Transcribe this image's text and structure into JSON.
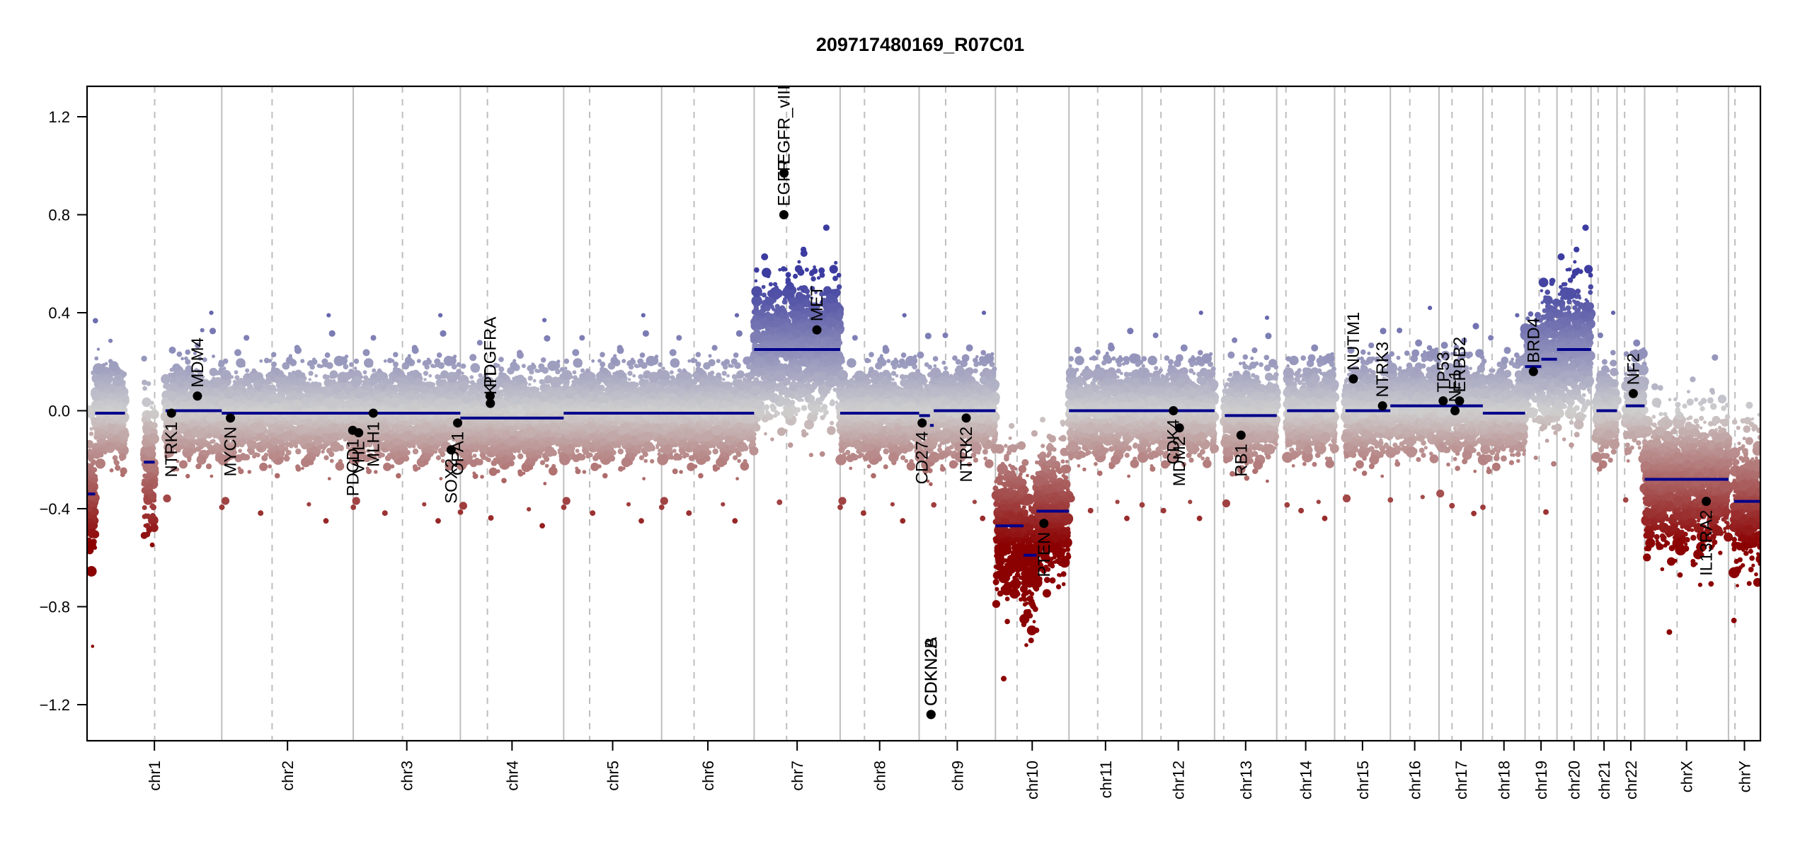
{
  "chart_data": {
    "type": "scatter",
    "title": "209717480169_R07C01",
    "xlabel": "",
    "ylabel": "",
    "ylim": [
      -1.33,
      1.33
    ],
    "yticks": [
      1.2,
      0.8,
      0.4,
      0.0,
      -0.4,
      -0.8,
      -1.2
    ],
    "ytick_labels": [
      "1.2",
      "0.8",
      "0.4",
      "0.0",
      "−0.4",
      "−0.8",
      "−1.2"
    ],
    "grid": false,
    "legend": "none",
    "colors": {
      "gain": "#3c3ca0",
      "neutral": "#cfcfcf",
      "loss": "#8b0000",
      "segment": "#00008b",
      "gene": "#000000",
      "chrom_border": "#bebebe",
      "centromere": "#bebebe"
    },
    "chromosomes": [
      {
        "name": "chr1",
        "length_mb": 249,
        "centromere_mb": 125
      },
      {
        "name": "chr2",
        "length_mb": 243,
        "centromere_mb": 93
      },
      {
        "name": "chr3",
        "length_mb": 198,
        "centromere_mb": 91
      },
      {
        "name": "chr4",
        "length_mb": 191,
        "centromere_mb": 50
      },
      {
        "name": "chr5",
        "length_mb": 181,
        "centromere_mb": 48
      },
      {
        "name": "chr6",
        "length_mb": 171,
        "centromere_mb": 60
      },
      {
        "name": "chr7",
        "length_mb": 159,
        "centromere_mb": 60
      },
      {
        "name": "chr8",
        "length_mb": 146,
        "centromere_mb": 45
      },
      {
        "name": "chr9",
        "length_mb": 141,
        "centromere_mb": 49
      },
      {
        "name": "chr10",
        "length_mb": 136,
        "centromere_mb": 40
      },
      {
        "name": "chr11",
        "length_mb": 135,
        "centromere_mb": 53
      },
      {
        "name": "chr12",
        "length_mb": 134,
        "centromere_mb": 35
      },
      {
        "name": "chr13",
        "length_mb": 115,
        "centromere_mb": 17
      },
      {
        "name": "chr14",
        "length_mb": 107,
        "centromere_mb": 17
      },
      {
        "name": "chr15",
        "length_mb": 103,
        "centromere_mb": 19
      },
      {
        "name": "chr16",
        "length_mb": 90,
        "centromere_mb": 36
      },
      {
        "name": "chr17",
        "length_mb": 81,
        "centromere_mb": 24
      },
      {
        "name": "chr18",
        "length_mb": 78,
        "centromere_mb": 17
      },
      {
        "name": "chr19",
        "length_mb": 59,
        "centromere_mb": 26
      },
      {
        "name": "chr20",
        "length_mb": 63,
        "centromere_mb": 27
      },
      {
        "name": "chr21",
        "length_mb": 48,
        "centromere_mb": 13
      },
      {
        "name": "chr22",
        "length_mb": 51,
        "centromere_mb": 14
      },
      {
        "name": "chrX",
        "length_mb": 155,
        "centromere_mb": 60
      },
      {
        "name": "chrY",
        "length_mb": 59,
        "centromere_mb": 12
      }
    ],
    "segments": [
      {
        "chr": "chr1",
        "start": 0,
        "end": 15,
        "value": -0.34
      },
      {
        "chr": "chr1",
        "start": 15,
        "end": 70,
        "value": -0.01
      },
      {
        "chr": "chr1",
        "start": 105,
        "end": 125,
        "value": -0.21
      },
      {
        "chr": "chr1",
        "start": 145,
        "end": 249,
        "value": 0.0
      },
      {
        "chr": "chr2",
        "start": 0,
        "end": 243,
        "value": -0.01
      },
      {
        "chr": "chr3",
        "start": 0,
        "end": 198,
        "value": -0.01
      },
      {
        "chr": "chr4",
        "start": 0,
        "end": 191,
        "value": -0.03
      },
      {
        "chr": "chr5",
        "start": 0,
        "end": 181,
        "value": -0.01
      },
      {
        "chr": "chr6",
        "start": 0,
        "end": 171,
        "value": -0.01
      },
      {
        "chr": "chr7",
        "start": 0,
        "end": 159,
        "value": 0.25
      },
      {
        "chr": "chr8",
        "start": 0,
        "end": 146,
        "value": -0.01
      },
      {
        "chr": "chr9",
        "start": 0,
        "end": 20,
        "value": -0.02
      },
      {
        "chr": "chr9",
        "start": 20,
        "end": 27,
        "value": -0.06
      },
      {
        "chr": "chr9",
        "start": 27,
        "end": 141,
        "value": 0.0
      },
      {
        "chr": "chr10",
        "start": 0,
        "end": 52,
        "value": -0.47
      },
      {
        "chr": "chr10",
        "start": 52,
        "end": 76,
        "value": -0.59
      },
      {
        "chr": "chr10",
        "start": 76,
        "end": 136,
        "value": -0.41
      },
      {
        "chr": "chr11",
        "start": 0,
        "end": 135,
        "value": 0.0
      },
      {
        "chr": "chr12",
        "start": 0,
        "end": 134,
        "value": 0.0
      },
      {
        "chr": "chr13",
        "start": 19,
        "end": 115,
        "value": -0.02
      },
      {
        "chr": "chr14",
        "start": 19,
        "end": 107,
        "value": 0.0
      },
      {
        "chr": "chr15",
        "start": 20,
        "end": 103,
        "value": 0.0
      },
      {
        "chr": "chr16",
        "start": 0,
        "end": 90,
        "value": 0.02
      },
      {
        "chr": "chr17",
        "start": 0,
        "end": 81,
        "value": 0.02
      },
      {
        "chr": "chr18",
        "start": 0,
        "end": 78,
        "value": -0.01
      },
      {
        "chr": "chr19",
        "start": 0,
        "end": 30,
        "value": 0.18
      },
      {
        "chr": "chr19",
        "start": 30,
        "end": 59,
        "value": 0.21
      },
      {
        "chr": "chr20",
        "start": 0,
        "end": 63,
        "value": 0.25
      },
      {
        "chr": "chr21",
        "start": 10,
        "end": 48,
        "value": 0.0
      },
      {
        "chr": "chr22",
        "start": 16,
        "end": 51,
        "value": 0.02
      },
      {
        "chr": "chrX",
        "start": 0,
        "end": 155,
        "value": -0.28
      },
      {
        "chr": "chrY",
        "start": 10,
        "end": 59,
        "value": -0.37
      }
    ],
    "genes": [
      {
        "name": "NTRK1",
        "chr": "chr1",
        "pos_mb": 156,
        "value": -0.01,
        "label_side": "below"
      },
      {
        "name": "MDM4",
        "chr": "chr1",
        "pos_mb": 204,
        "value": 0.06,
        "label_side": "above"
      },
      {
        "name": "MYCN",
        "chr": "chr2",
        "pos_mb": 16,
        "value": -0.03,
        "label_side": "below"
      },
      {
        "name": "PDCD1",
        "chr": "chr2",
        "pos_mb": 242,
        "value": -0.08,
        "label_side": "below"
      },
      {
        "name": "VHL",
        "chr": "chr3",
        "pos_mb": 10,
        "value": -0.09,
        "label_side": "below"
      },
      {
        "name": "MLH1",
        "chr": "chr3",
        "pos_mb": 37,
        "value": -0.01,
        "label_side": "below"
      },
      {
        "name": "SOX2",
        "chr": "chr3",
        "pos_mb": 181,
        "value": -0.16,
        "label_side": "below"
      },
      {
        "name": "OPA1",
        "chr": "chr3",
        "pos_mb": 193,
        "value": -0.05,
        "label_side": "below"
      },
      {
        "name": "PDGFRA",
        "chr": "chr4",
        "pos_mb": 55,
        "value": 0.06,
        "label_side": "above"
      },
      {
        "name": "KIT",
        "chr": "chr4",
        "pos_mb": 55.5,
        "value": 0.03,
        "label_side": "above"
      },
      {
        "name": "EGFR",
        "chr": "chr7",
        "pos_mb": 55,
        "value": 0.8,
        "label_side": "above"
      },
      {
        "name": "EGFR_vIII",
        "chr": "chr7",
        "pos_mb": 55.3,
        "value": 0.97,
        "label_side": "above"
      },
      {
        "name": "MET",
        "chr": "chr7",
        "pos_mb": 116,
        "value": 0.33,
        "label_side": "above"
      },
      {
        "name": "CD274",
        "chr": "chr9",
        "pos_mb": 5.5,
        "value": -0.05,
        "label_side": "below"
      },
      {
        "name": "CDKN2A",
        "chr": "chr9",
        "pos_mb": 21.9,
        "value": -1.24,
        "label_side": "above"
      },
      {
        "name": "CDKN2B",
        "chr": "chr9",
        "pos_mb": 22.0,
        "value": -1.24,
        "label_side": "above"
      },
      {
        "name": "NTRK2",
        "chr": "chr9",
        "pos_mb": 87,
        "value": -0.03,
        "label_side": "below"
      },
      {
        "name": "PTEN",
        "chr": "chr10",
        "pos_mb": 89.6,
        "value": -0.46,
        "label_side": "below"
      },
      {
        "name": "CDK4",
        "chr": "chr12",
        "pos_mb": 58,
        "value": 0.0,
        "label_side": "below"
      },
      {
        "name": "MDM2",
        "chr": "chr12",
        "pos_mb": 69,
        "value": -0.07,
        "label_side": "below"
      },
      {
        "name": "RB1",
        "chr": "chr13",
        "pos_mb": 49,
        "value": -0.1,
        "label_side": "below"
      },
      {
        "name": "NUTM1",
        "chr": "chr15",
        "pos_mb": 34.6,
        "value": 0.13,
        "label_side": "above"
      },
      {
        "name": "NTRK3",
        "chr": "chr15",
        "pos_mb": 88.5,
        "value": 0.02,
        "label_side": "above"
      },
      {
        "name": "TP53",
        "chr": "chr17",
        "pos_mb": 7.6,
        "value": 0.04,
        "label_side": "above"
      },
      {
        "name": "NF1",
        "chr": "chr17",
        "pos_mb": 29.5,
        "value": 0.0,
        "label_side": "above"
      },
      {
        "name": "ERBB2",
        "chr": "chr17",
        "pos_mb": 37.8,
        "value": 0.04,
        "label_side": "above"
      },
      {
        "name": "BRD4",
        "chr": "chr19",
        "pos_mb": 15.4,
        "value": 0.16,
        "label_side": "above"
      },
      {
        "name": "NF2",
        "chr": "chr22",
        "pos_mb": 30,
        "value": 0.07,
        "label_side": "above"
      },
      {
        "name": "IL13RA2",
        "chr": "chrX",
        "pos_mb": 114,
        "value": -0.37,
        "label_side": "below"
      }
    ]
  }
}
